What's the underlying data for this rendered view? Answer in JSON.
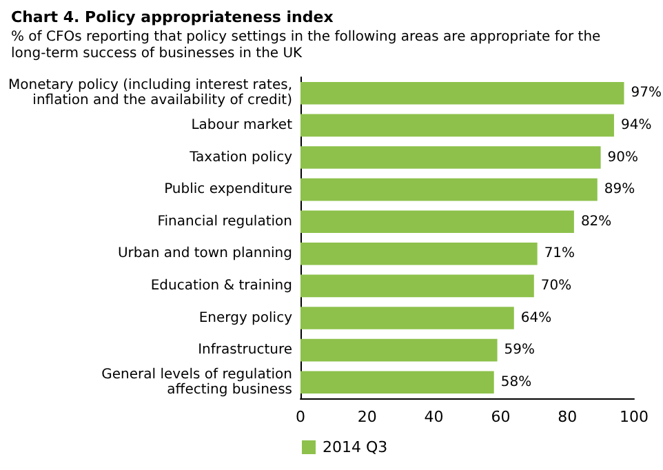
{
  "chart_data": {
    "type": "bar",
    "orientation": "horizontal",
    "title": "Chart 4. Policy appropriateness index",
    "subtitle": "% of CFOs reporting that policy settings in the following areas are appropriate for the long-term success of businesses in the UK",
    "categories": [
      "Monetary policy (including interest rates,\ninflation and the availability of credit)",
      "Labour market",
      "Taxation policy",
      "Public expenditure",
      "Financial regulation",
      "Urban and town planning",
      "Education & training",
      "Energy policy",
      "Infrastructure",
      "General levels of regulation\naffecting business"
    ],
    "series": [
      {
        "name": "2014 Q3",
        "color": "#8dc14b",
        "values": [
          97,
          94,
          90,
          89,
          82,
          71,
          70,
          64,
          59,
          58
        ],
        "value_labels": [
          "97%",
          "94%",
          "90%",
          "89%",
          "82%",
          "71%",
          "70%",
          "64%",
          "59%",
          "58%"
        ]
      }
    ],
    "xlim": [
      0,
      100
    ],
    "xticks": [
      0,
      20,
      40,
      60,
      80,
      100
    ],
    "grid": false,
    "legend": "bottom left"
  }
}
